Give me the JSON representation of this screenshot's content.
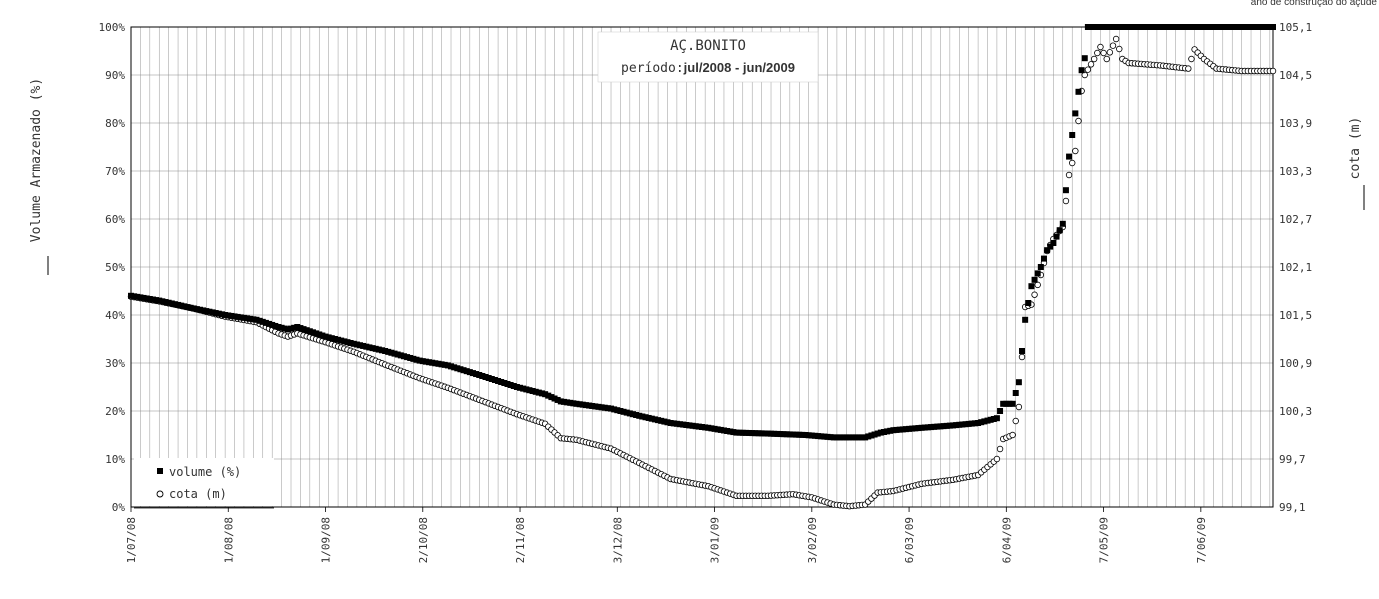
{
  "corner_note": "ano de construção do açude",
  "chart_data": {
    "type": "scatter",
    "title": "AÇ.BONITO",
    "subtitle_prefix": "período:",
    "subtitle_period": "jul/2008 - jun/2009",
    "ylabel_left": "Volume Armazenado (%)",
    "ylabel_right": "cota (m)",
    "y_left_ticks": [
      "0%",
      "10%",
      "20%",
      "30%",
      "40%",
      "50%",
      "60%",
      "70%",
      "80%",
      "90%",
      "100%"
    ],
    "y_left_range": [
      0,
      100
    ],
    "y_right_ticks": [
      "99,1",
      "99,7",
      "100,3",
      "100,9",
      "101,5",
      "102,1",
      "102,7",
      "103,3",
      "103,9",
      "104,5",
      "105,1"
    ],
    "y_right_range": [
      99.1,
      105.1
    ],
    "x_range": [
      "2008-07-01",
      "2009-06-30"
    ],
    "x_ticks": [
      {
        "date": "2008-07-01",
        "label": "1/07/08"
      },
      {
        "date": "2008-08-01",
        "label": "1/08/08"
      },
      {
        "date": "2008-09-01",
        "label": "1/09/08"
      },
      {
        "date": "2008-10-02",
        "label": "2/10/08"
      },
      {
        "date": "2008-11-02",
        "label": "2/11/08"
      },
      {
        "date": "2008-12-03",
        "label": "3/12/08"
      },
      {
        "date": "2009-01-03",
        "label": "3/01/09"
      },
      {
        "date": "2009-02-03",
        "label": "3/02/09"
      },
      {
        "date": "2009-03-06",
        "label": "6/03/09"
      },
      {
        "date": "2009-04-06",
        "label": "6/04/09"
      },
      {
        "date": "2009-05-07",
        "label": "7/05/09"
      },
      {
        "date": "2009-06-07",
        "label": "7/06/09"
      }
    ],
    "grid": true,
    "legend_position": "bottom-left",
    "series": [
      {
        "name": "volume (%)",
        "marker": "filled-square",
        "color": "#000000",
        "axis": "left",
        "points": [
          [
            "2008-07-01",
            44
          ],
          [
            "2008-07-10",
            43
          ],
          [
            "2008-07-20",
            41.5
          ],
          [
            "2008-07-31",
            40
          ],
          [
            "2008-08-10",
            39
          ],
          [
            "2008-08-17",
            37.5
          ],
          [
            "2008-08-20",
            37
          ],
          [
            "2008-08-23",
            37.5
          ],
          [
            "2008-09-01",
            35.5
          ],
          [
            "2008-09-10",
            34
          ],
          [
            "2008-09-20",
            32.5
          ],
          [
            "2008-10-01",
            30.5
          ],
          [
            "2008-10-10",
            29.5
          ],
          [
            "2008-10-20",
            27.5
          ],
          [
            "2008-11-01",
            25
          ],
          [
            "2008-11-10",
            23.5
          ],
          [
            "2008-11-15",
            22
          ],
          [
            "2008-11-20",
            21.5
          ],
          [
            "2008-12-01",
            20.5
          ],
          [
            "2008-12-10",
            19
          ],
          [
            "2008-12-20",
            17.5
          ],
          [
            "2009-01-01",
            16.5
          ],
          [
            "2009-01-10",
            15.5
          ],
          [
            "2009-01-20",
            15.3
          ],
          [
            "2009-02-01",
            15
          ],
          [
            "2009-02-10",
            14.5
          ],
          [
            "2009-02-20",
            14.5
          ],
          [
            "2009-02-25",
            15.5
          ],
          [
            "2009-03-01",
            16
          ],
          [
            "2009-03-10",
            16.5
          ],
          [
            "2009-03-20",
            17
          ],
          [
            "2009-03-28",
            17.5
          ],
          [
            "2009-04-03",
            18.5
          ],
          [
            "2009-04-05",
            21.5
          ],
          [
            "2009-04-08",
            21.5
          ],
          [
            "2009-04-10",
            26
          ],
          [
            "2009-04-12",
            39
          ],
          [
            "2009-04-14",
            46
          ],
          [
            "2009-04-17",
            50
          ],
          [
            "2009-04-19",
            53.5
          ],
          [
            "2009-04-21",
            55
          ],
          [
            "2009-04-24",
            59
          ],
          [
            "2009-04-26",
            73
          ],
          [
            "2009-04-28",
            82
          ],
          [
            "2009-04-30",
            91
          ],
          [
            "2009-05-01",
            93.5
          ],
          [
            "2009-05-02",
            100
          ],
          [
            "2009-05-15",
            100
          ],
          [
            "2009-06-01",
            100
          ],
          [
            "2009-06-15",
            100
          ],
          [
            "2009-06-30",
            100
          ]
        ]
      },
      {
        "name": "cota (m)",
        "marker": "open-circle",
        "color": "#000000",
        "axis": "right",
        "points": [
          [
            "2008-07-01",
            101.73
          ],
          [
            "2008-07-10",
            101.67
          ],
          [
            "2008-07-20",
            101.59
          ],
          [
            "2008-07-31",
            101.48
          ],
          [
            "2008-08-10",
            101.41
          ],
          [
            "2008-08-17",
            101.27
          ],
          [
            "2008-08-20",
            101.23
          ],
          [
            "2008-08-23",
            101.27
          ],
          [
            "2008-09-01",
            101.16
          ],
          [
            "2008-09-10",
            101.04
          ],
          [
            "2008-09-20",
            100.88
          ],
          [
            "2008-10-01",
            100.71
          ],
          [
            "2008-10-10",
            100.59
          ],
          [
            "2008-10-20",
            100.44
          ],
          [
            "2008-11-01",
            100.26
          ],
          [
            "2008-11-10",
            100.14
          ],
          [
            "2008-11-15",
            99.96
          ],
          [
            "2008-11-20",
            99.94
          ],
          [
            "2008-12-01",
            99.83
          ],
          [
            "2008-12-10",
            99.65
          ],
          [
            "2008-12-20",
            99.45
          ],
          [
            "2009-01-01",
            99.36
          ],
          [
            "2009-01-10",
            99.24
          ],
          [
            "2009-01-20",
            99.24
          ],
          [
            "2009-01-28",
            99.26
          ],
          [
            "2009-02-03",
            99.22
          ],
          [
            "2009-02-10",
            99.13
          ],
          [
            "2009-02-15",
            99.11
          ],
          [
            "2009-02-20",
            99.13
          ],
          [
            "2009-02-24",
            99.28
          ],
          [
            "2009-03-01",
            99.3
          ],
          [
            "2009-03-10",
            99.39
          ],
          [
            "2009-03-20",
            99.44
          ],
          [
            "2009-03-28",
            99.5
          ],
          [
            "2009-04-03",
            99.7
          ],
          [
            "2009-04-05",
            99.95
          ],
          [
            "2009-04-08",
            100.0
          ],
          [
            "2009-04-10",
            100.35
          ],
          [
            "2009-04-12",
            101.6
          ],
          [
            "2009-04-14",
            101.63
          ],
          [
            "2009-04-17",
            102.0
          ],
          [
            "2009-04-19",
            102.3
          ],
          [
            "2009-04-21",
            102.45
          ],
          [
            "2009-04-24",
            102.6
          ],
          [
            "2009-04-26",
            103.25
          ],
          [
            "2009-04-28",
            103.55
          ],
          [
            "2009-04-30",
            104.3
          ],
          [
            "2009-05-01",
            104.5
          ],
          [
            "2009-05-04",
            104.7
          ],
          [
            "2009-05-06",
            104.85
          ],
          [
            "2009-05-08",
            104.7
          ],
          [
            "2009-05-11",
            104.95
          ],
          [
            "2009-05-13",
            104.7
          ],
          [
            "2009-05-15",
            104.65
          ],
          [
            "2009-05-25",
            104.62
          ],
          [
            "2009-06-03",
            104.58
          ],
          [
            "2009-06-05",
            104.82
          ],
          [
            "2009-06-08",
            104.7
          ],
          [
            "2009-06-12",
            104.58
          ],
          [
            "2009-06-20",
            104.55
          ],
          [
            "2009-06-30",
            104.55
          ]
        ]
      }
    ]
  }
}
